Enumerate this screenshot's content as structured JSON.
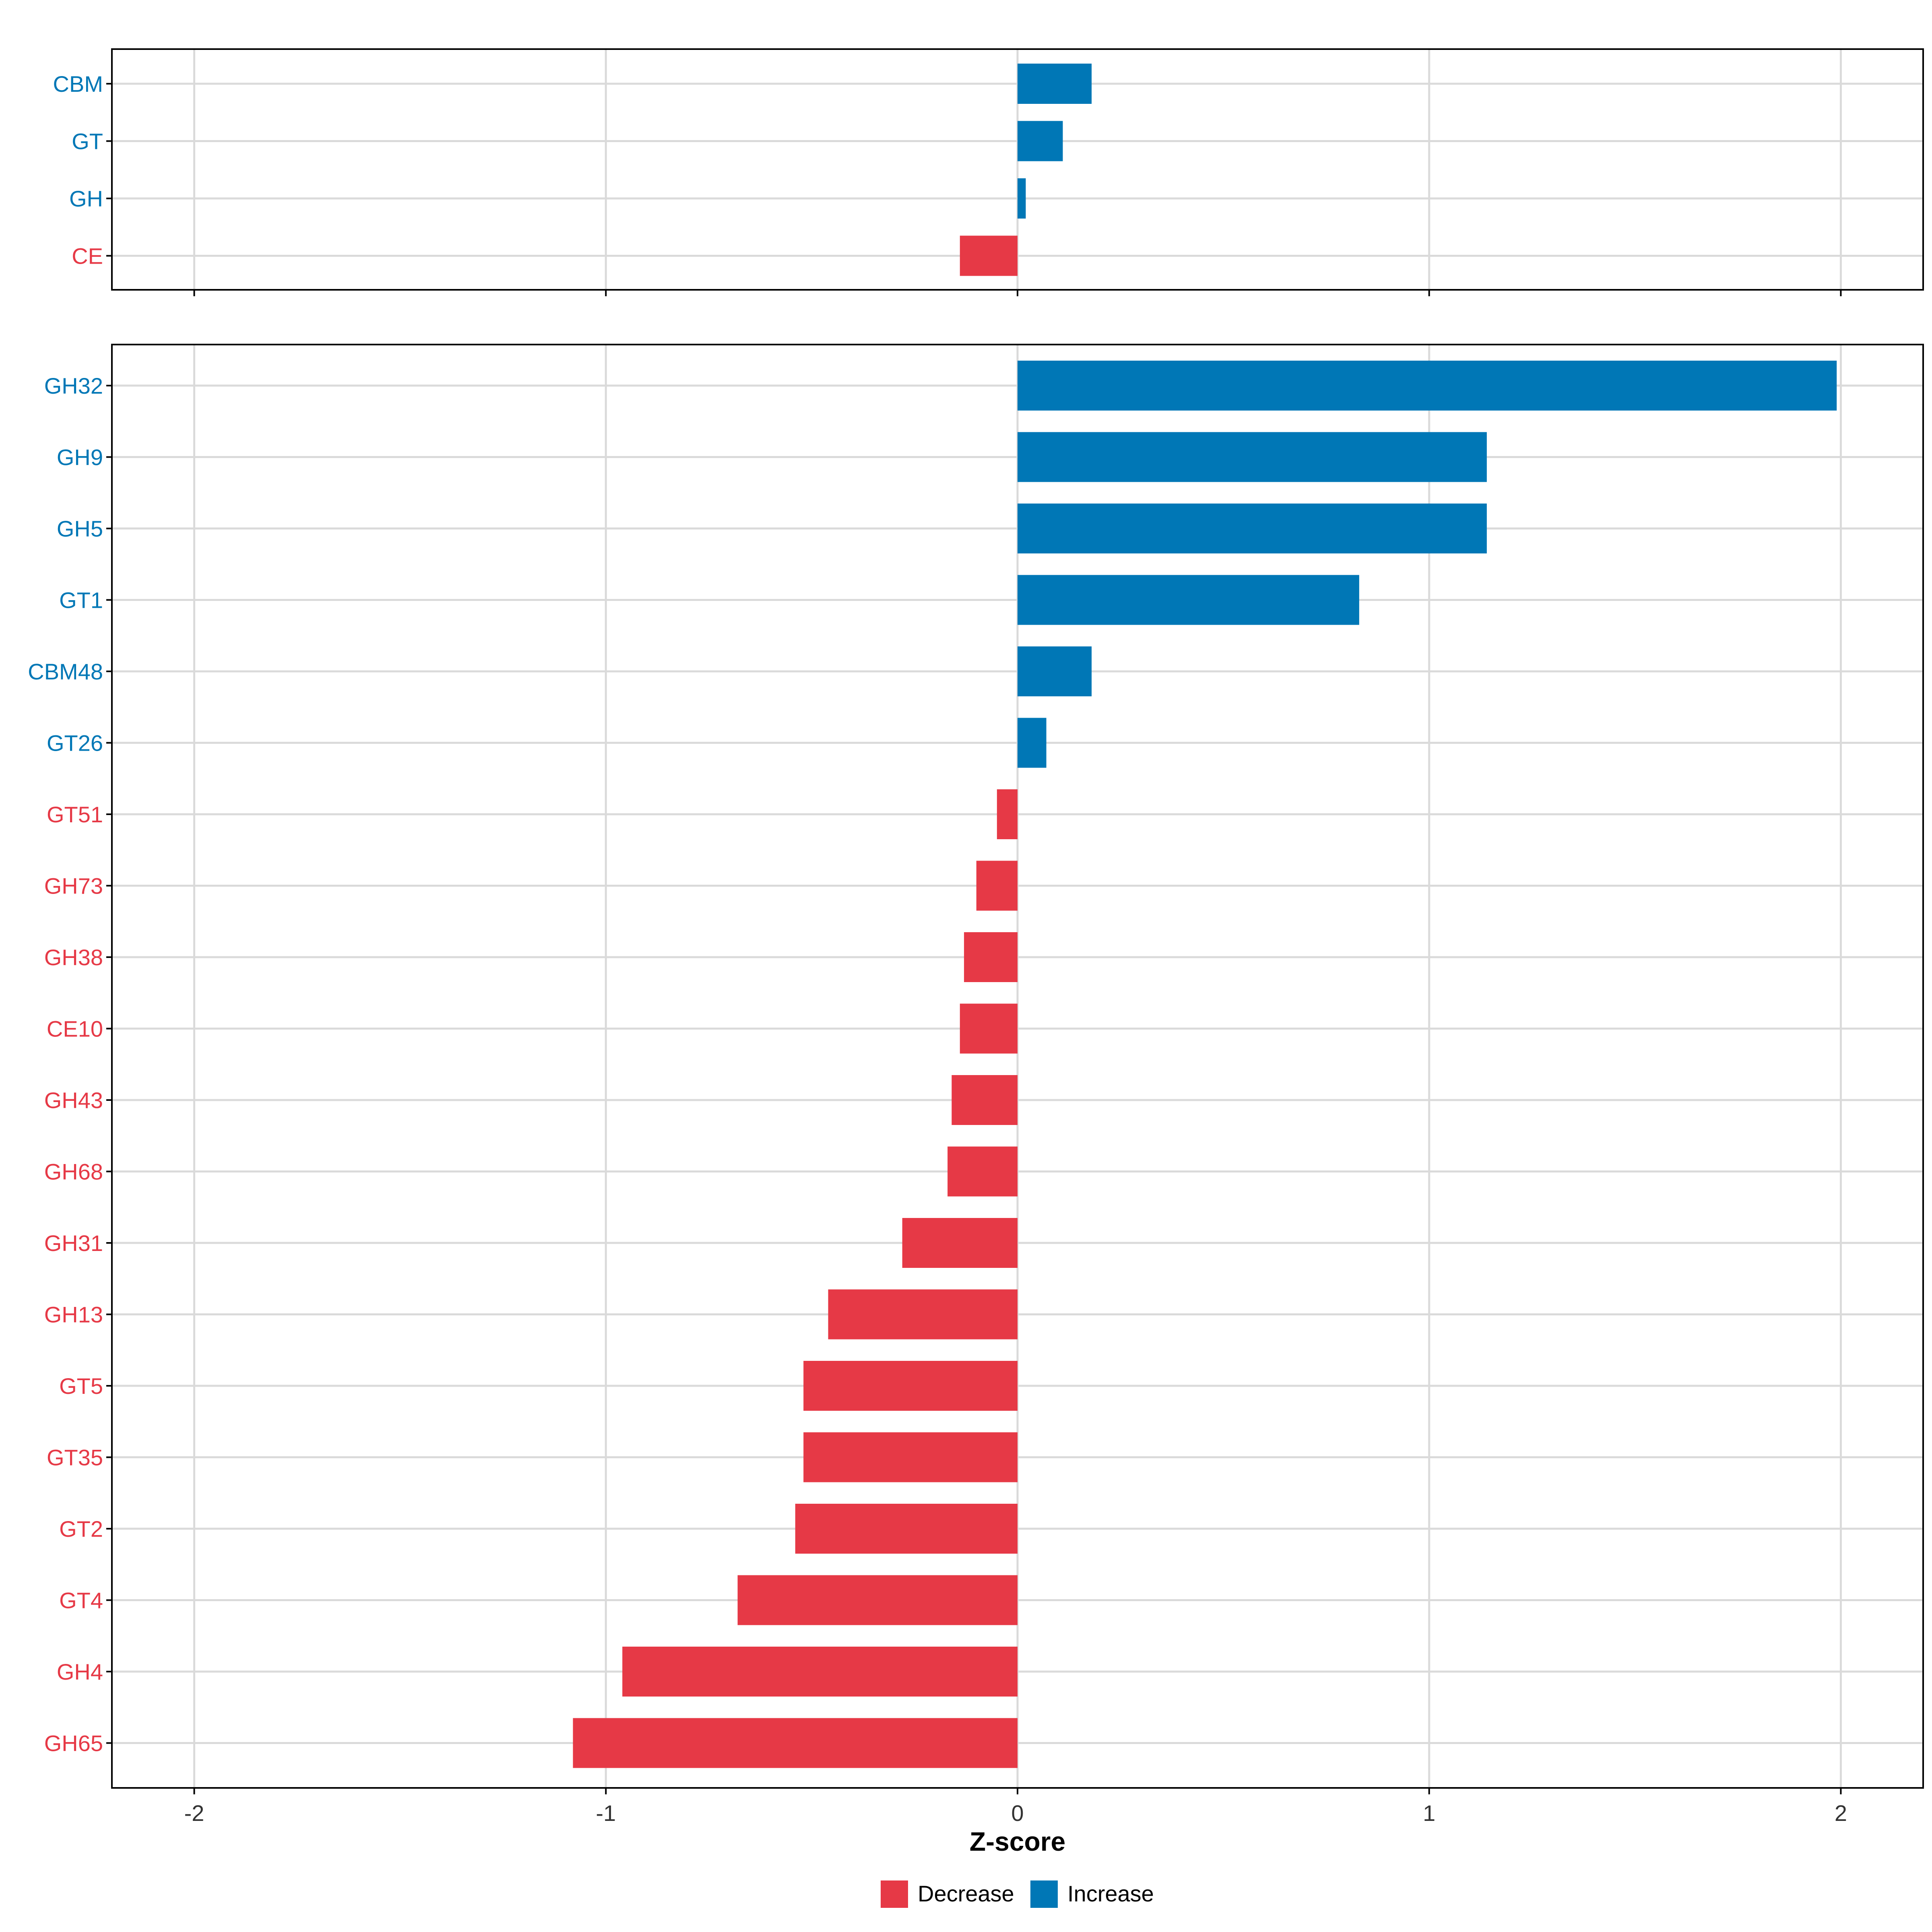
{
  "chart_data": [
    {
      "type": "bar",
      "orientation": "horizontal",
      "panel": "top",
      "categories": [
        "CBM",
        "GT",
        "GH",
        "CE"
      ],
      "values": [
        0.18,
        0.11,
        0.02,
        -0.14
      ],
      "groups": [
        "Increase",
        "Increase",
        "Increase",
        "Decrease"
      ],
      "xlim": [
        -2.2,
        2.2
      ],
      "grid": true
    },
    {
      "type": "bar",
      "orientation": "horizontal",
      "panel": "bottom",
      "categories": [
        "GH32",
        "GH9",
        "GH5",
        "GT1",
        "CBM48",
        "GT26",
        "GT51",
        "GH73",
        "GH38",
        "CE10",
        "GH43",
        "GH68",
        "GH31",
        "GH13",
        "GT5",
        "GT35",
        "GT2",
        "GT4",
        "GH4",
        "GH65"
      ],
      "values": [
        1.99,
        1.14,
        1.14,
        0.83,
        0.18,
        0.07,
        -0.05,
        -0.1,
        -0.13,
        -0.14,
        -0.16,
        -0.17,
        -0.28,
        -0.46,
        -0.52,
        -0.52,
        -0.54,
        -0.68,
        -0.96,
        -1.08
      ],
      "groups": [
        "Increase",
        "Increase",
        "Increase",
        "Increase",
        "Increase",
        "Increase",
        "Decrease",
        "Decrease",
        "Decrease",
        "Decrease",
        "Decrease",
        "Decrease",
        "Decrease",
        "Decrease",
        "Decrease",
        "Decrease",
        "Decrease",
        "Decrease",
        "Decrease",
        "Decrease"
      ],
      "xlim": [
        -2.2,
        2.2
      ],
      "xticks": [
        -2,
        -1,
        0,
        1,
        2
      ],
      "xtick_labels": [
        "-2",
        "-1",
        "0",
        "1",
        "2"
      ],
      "xlabel": "Z-score",
      "grid": true
    }
  ],
  "legend": {
    "position": "bottom",
    "items": [
      {
        "label": "Decrease",
        "color": "#E63946"
      },
      {
        "label": "Increase",
        "color": "#0077B6"
      }
    ]
  },
  "colors": {
    "Decrease": "#E63946",
    "Increase": "#0077B6",
    "grid": "#DADADA",
    "axis": "#000000",
    "tick_text": "#333333"
  }
}
